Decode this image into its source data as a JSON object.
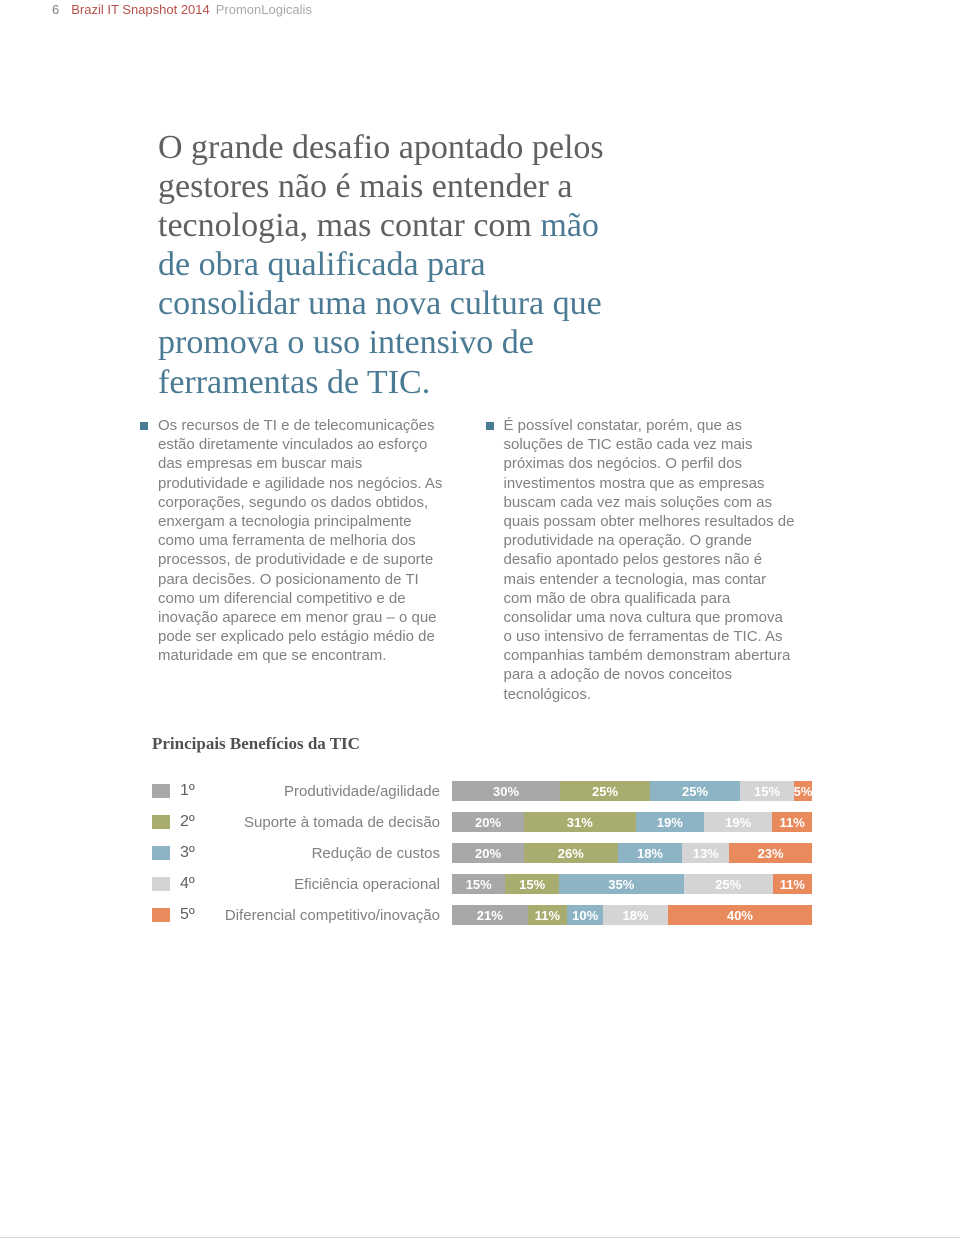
{
  "header": {
    "page_number": "6",
    "title": "Brazil IT Snapshot 2014",
    "subtitle": "PromonLogicalis"
  },
  "headline": {
    "part1": "O grande desafio apontado pelos gestores não é mais entender a tecnologia, mas contar com ",
    "accent": "mão de obra qualificada para consolidar uma nova cultura que promova o uso intensivo de ferramentas de TIC."
  },
  "columns": {
    "left": {
      "bullet_color": "#4a7a94",
      "text": "Os recursos de TI e de telecomunicações estão diretamente vinculados ao esforço das empresas em buscar mais produtividade e agilidade nos negócios. As corporações, segundo os dados obtidos, enxergam a tecnologia principalmente como uma ferramenta de melhoria dos processos, de produtividade e de suporte para decisões. O posicionamento de TI como um diferencial competitivo e de inovação aparece em menor grau – o que pode ser explicado pelo estágio médio de maturidade em que se encontram."
    },
    "right": {
      "bullet_color": "#4a7a94",
      "text": "É possível constatar, porém, que as soluções de TIC estão cada vez mais próximas dos negócios. O perfil dos investimentos mostra que as empresas buscam cada vez mais soluções com as quais possam obter melhores resultados de produtividade na operação. O grande desafio apontado pelos gestores não é mais entender a tecnologia, mas contar com mão de obra qualificada para consolidar uma nova cultura que promova o uso intensivo de ferramentas de TIC. As companhias também demonstram abertura para a adoção de novos conceitos tecnológicos."
    }
  },
  "chart": {
    "title": "Principais Benefícios da TIC",
    "colors": {
      "rank1": "#a8a8a8",
      "rank2": "#a8ad6f",
      "rank3": "#8db4c4",
      "rank4": "#d4d4d4",
      "rank5": "#e88a5c"
    },
    "rows": [
      {
        "rank": "1º",
        "swatch": "#a8a8a8",
        "label": "Produtividade/agilidade",
        "segments": [
          {
            "value": 30,
            "label": "30%",
            "color": "#a8a8a8"
          },
          {
            "value": 25,
            "label": "25%",
            "color": "#a8ad6f"
          },
          {
            "value": 25,
            "label": "25%",
            "color": "#8db4c4"
          },
          {
            "value": 15,
            "label": "15%",
            "color": "#d4d4d4"
          },
          {
            "value": 5,
            "label": "5%",
            "color": "#e88a5c"
          }
        ]
      },
      {
        "rank": "2º",
        "swatch": "#a8ad6f",
        "label": "Suporte à tomada de decisão",
        "segments": [
          {
            "value": 20,
            "label": "20%",
            "color": "#a8a8a8"
          },
          {
            "value": 31,
            "label": "31%",
            "color": "#a8ad6f"
          },
          {
            "value": 19,
            "label": "19%",
            "color": "#8db4c4"
          },
          {
            "value": 19,
            "label": "19%",
            "color": "#d4d4d4"
          },
          {
            "value": 11,
            "label": "11%",
            "color": "#e88a5c"
          }
        ]
      },
      {
        "rank": "3º",
        "swatch": "#8db4c4",
        "label": "Redução de custos",
        "segments": [
          {
            "value": 20,
            "label": "20%",
            "color": "#a8a8a8"
          },
          {
            "value": 26,
            "label": "26%",
            "color": "#a8ad6f"
          },
          {
            "value": 18,
            "label": "18%",
            "color": "#8db4c4"
          },
          {
            "value": 13,
            "label": "13%",
            "color": "#d4d4d4"
          },
          {
            "value": 23,
            "label": "23%",
            "color": "#e88a5c"
          }
        ]
      },
      {
        "rank": "4º",
        "swatch": "#d4d4d4",
        "label": "Eficiência operacional",
        "segments": [
          {
            "value": 15,
            "label": "15%",
            "color": "#a8a8a8"
          },
          {
            "value": 15,
            "label": "15%",
            "color": "#a8ad6f"
          },
          {
            "value": 35,
            "label": "35%",
            "color": "#8db4c4"
          },
          {
            "value": 25,
            "label": "25%",
            "color": "#d4d4d4"
          },
          {
            "value": 11,
            "label": "11%",
            "color": "#e88a5c"
          }
        ]
      },
      {
        "rank": "5º",
        "swatch": "#e88a5c",
        "label": "Diferencial competitivo/inovação",
        "segments": [
          {
            "value": 21,
            "label": "21%",
            "color": "#a8a8a8"
          },
          {
            "value": 11,
            "label": "11%",
            "color": "#a8ad6f"
          },
          {
            "value": 10,
            "label": "10%",
            "color": "#8db4c4"
          },
          {
            "value": 18,
            "label": "18%",
            "color": "#d4d4d4"
          },
          {
            "value": 40,
            "label": "40%",
            "color": "#e88a5c"
          }
        ]
      }
    ]
  }
}
